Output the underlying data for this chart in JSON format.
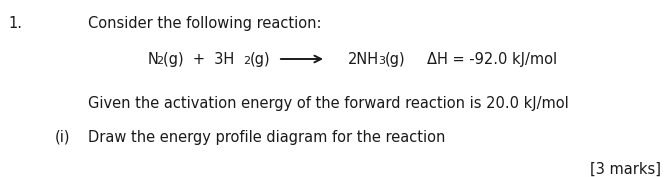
{
  "fig_width": 6.71,
  "fig_height": 1.77,
  "dpi": 100,
  "bg_color": "#ffffff",
  "text_color": "#1a1a1a",
  "font_size": 10.5,
  "font_size_sub": 8.0,
  "number": "1.",
  "line1": "Consider the following reaction:",
  "line3": "Given the activation energy of the forward reaction is 20.0 kJ/mol",
  "part_label": "(i)",
  "part_text": "Draw the energy profile diagram for the reaction",
  "marks": "[3 marks]",
  "eq_N": "N",
  "eq_sub2": "2",
  "eq_g1": "(g)  +  3H",
  "eq_sub2b": "2",
  "eq_g2": "(g)",
  "eq_products": "2NH",
  "eq_sub3": "3",
  "eq_g3": "(g)",
  "eq_dh": "ΔH = -92.0 kJ/mol"
}
